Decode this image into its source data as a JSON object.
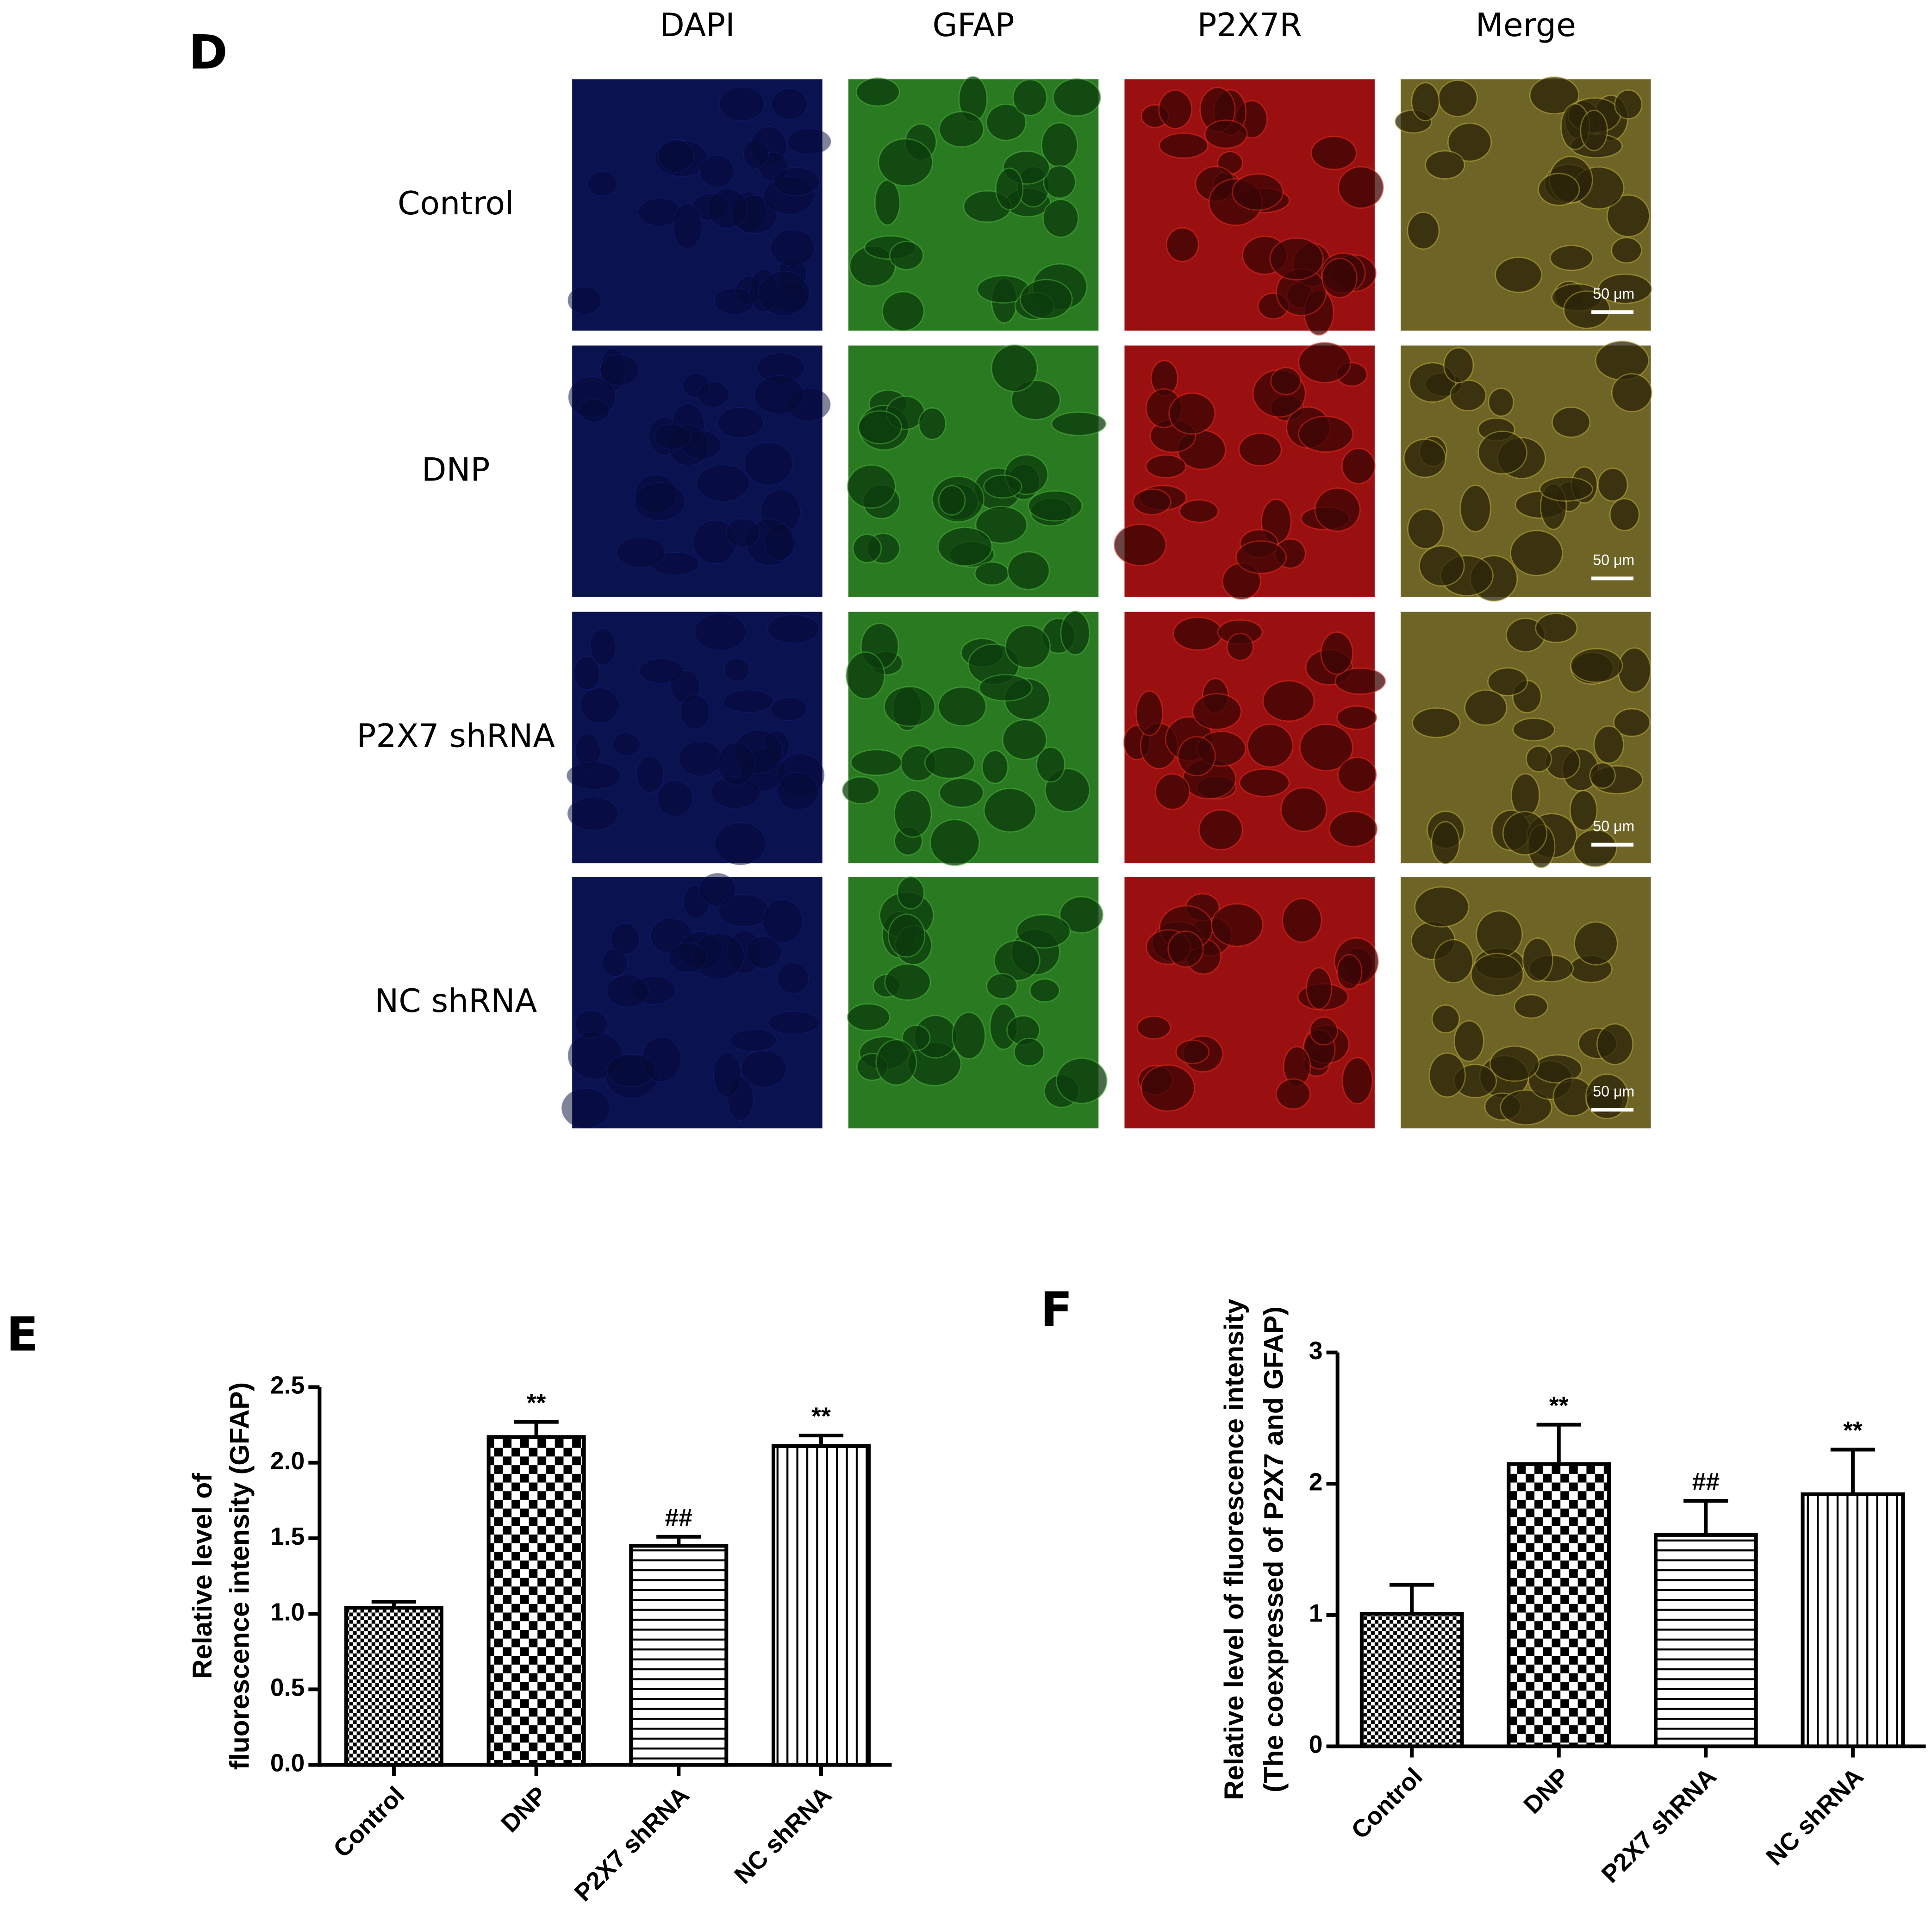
{
  "panel_d": {
    "label": "D",
    "columns": [
      "DAPI",
      "GFAP",
      "P2X7R",
      "Merge"
    ],
    "rows": [
      "Control",
      "DNP",
      "P2X7 shRNA",
      "NC shRNA"
    ],
    "scale_bar": "50 μm"
  },
  "chart_data": [
    {
      "type": "bar",
      "panel": "E",
      "ylabel": [
        "Relative level of",
        "fluorescence intensity (GFAP)"
      ],
      "categories": [
        "Control",
        "DNP",
        "P2X7 shRNA",
        "NC shRNA"
      ],
      "values": [
        1.04,
        2.17,
        1.45,
        2.11
      ],
      "errors": [
        0.04,
        0.1,
        0.06,
        0.07
      ],
      "value_labels": [
        null,
        "**",
        "##",
        "**"
      ],
      "ylim": [
        0,
        2.5
      ],
      "yticks": [
        {
          "value": 0,
          "label": "0.0"
        },
        0.5,
        {
          "value": 1,
          "label": "1.0"
        },
        1.5,
        {
          "value": 2,
          "label": "2.0"
        },
        2.5
      ]
    },
    {
      "type": "bar",
      "panel": "F",
      "ylabel": [
        "Relative level of fluorescence intensity",
        "(The coexpressed of P2X7 and GFAP)"
      ],
      "categories": [
        "Control",
        "DNP",
        "P2X7 shRNA",
        "NC shRNA"
      ],
      "values": [
        1.01,
        2.15,
        1.61,
        1.92
      ],
      "errors": [
        0.22,
        0.3,
        0.26,
        0.34
      ],
      "value_labels": [
        null,
        "**",
        "##",
        "**"
      ],
      "ylim": [
        0,
        3
      ],
      "yticks": [
        0,
        1,
        2,
        3
      ]
    }
  ]
}
